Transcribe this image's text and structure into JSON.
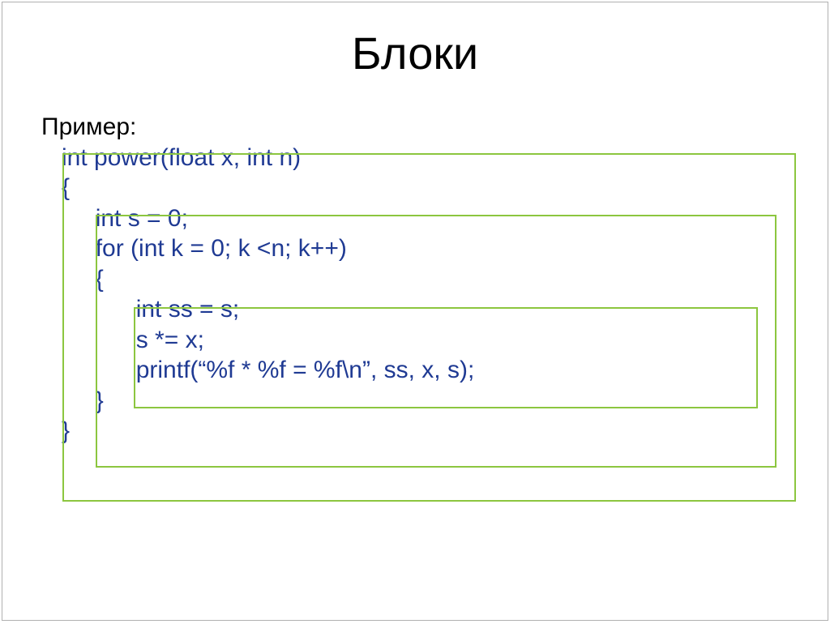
{
  "title": "Блоки",
  "label": "Пример:",
  "code": {
    "line1": "int power(float x, int n)",
    "line2": "{",
    "line3": "int s = 0;",
    "line4": "for (int k = 0; k <n; k++)",
    "line5": "{",
    "line6": "int ss = s;",
    "line7": "s *= x;",
    "line8": "printf(“%f * %f = %f\\n”, ss, x, s);",
    "line9": "}",
    "line10": "}"
  },
  "colors": {
    "code_text": "#1f3a93",
    "box_border": "#8cc63f",
    "background": "#ffffff",
    "title_text": "#000000"
  },
  "fontsize": {
    "title": 56,
    "body": 30
  }
}
